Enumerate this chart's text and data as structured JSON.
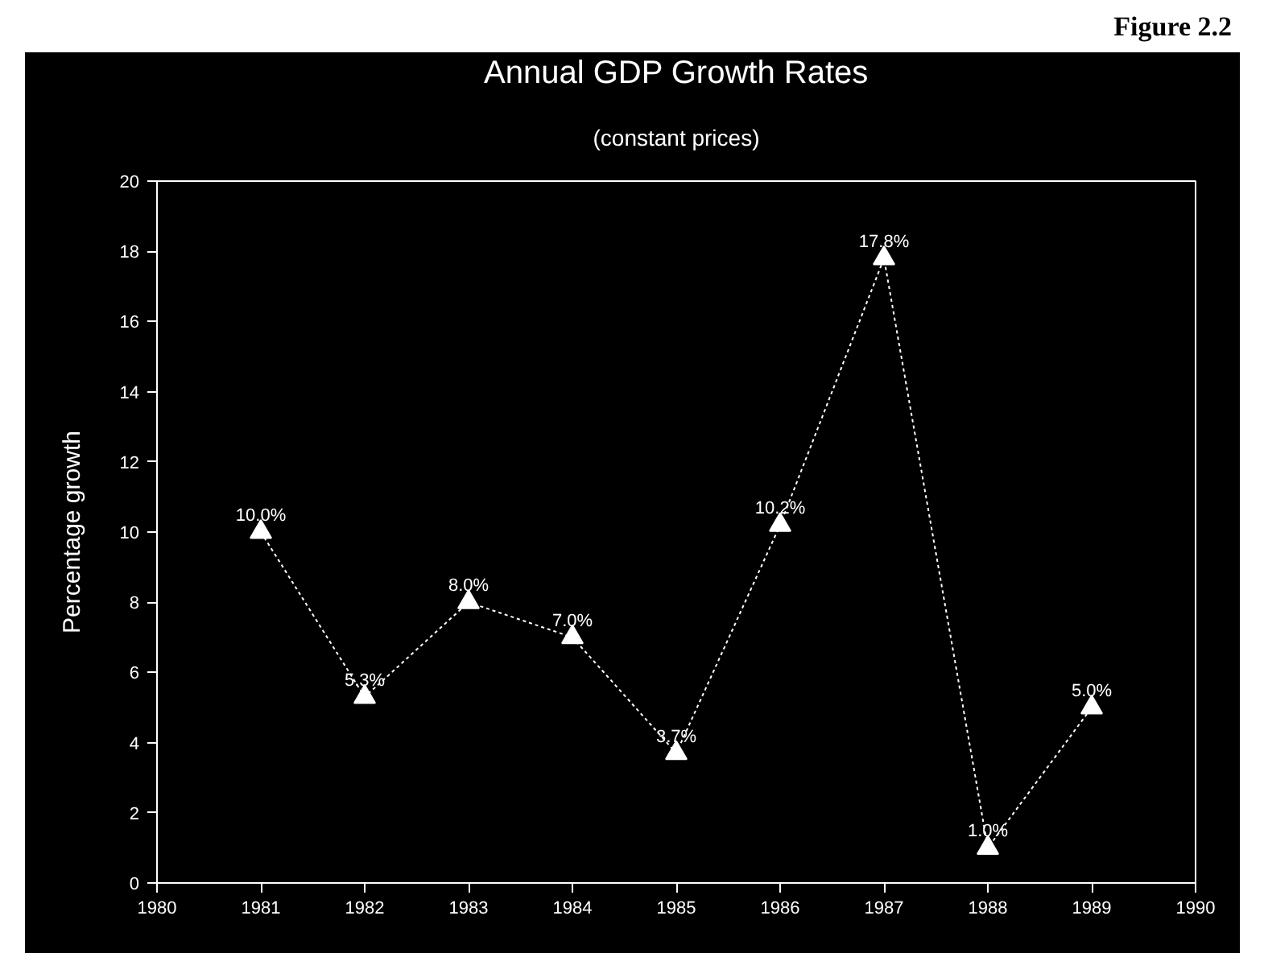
{
  "chart_data": {
    "type": "line",
    "title": "Annual GDP Growth Rates",
    "subtitle": "(constant prices)",
    "ylabel": "Percentage growth",
    "annotations": [
      "Figure 2.2"
    ],
    "x": [
      1981,
      1982,
      1983,
      1984,
      1985,
      1986,
      1987,
      1988,
      1989
    ],
    "values": [
      10.0,
      5.3,
      8.0,
      7.0,
      3.7,
      10.2,
      17.8,
      1.0,
      5.0
    ],
    "value_labels": [
      "10.0%",
      "5.3%",
      "8.0%",
      "7.0%",
      "3.7%",
      "10.2%",
      "17.8%",
      "1.0%",
      "5.0%"
    ],
    "color": "#ffffff",
    "marker": "triangle",
    "line_style": "dotted",
    "grid": false,
    "xlim": [
      1980,
      1990
    ],
    "xticks": [
      1980,
      1981,
      1982,
      1983,
      1984,
      1985,
      1986,
      1987,
      1988,
      1989,
      1990
    ],
    "ylim": [
      0,
      20
    ],
    "yticks": [
      0,
      2,
      4,
      6,
      8,
      10,
      12,
      14,
      16,
      18,
      20
    ]
  }
}
